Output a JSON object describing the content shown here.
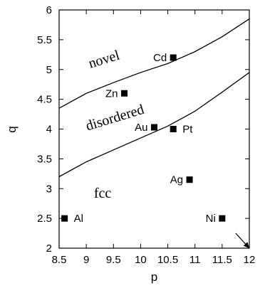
{
  "chart_data": {
    "type": "scatter",
    "title": "",
    "xlabel": "p",
    "ylabel": "q",
    "xlim": [
      8.5,
      12
    ],
    "ylim": [
      2,
      6
    ],
    "grid": false,
    "x_ticks": [
      {
        "value": 8.5,
        "label": "8.5"
      },
      {
        "value": 9,
        "label": "9"
      },
      {
        "value": 9.5,
        "label": "9.5"
      },
      {
        "value": 10,
        "label": "10"
      },
      {
        "value": 10.5,
        "label": "10.5"
      },
      {
        "value": 11,
        "label": "11"
      },
      {
        "value": 11.5,
        "label": "11.5"
      },
      {
        "value": 12,
        "label": "12"
      }
    ],
    "y_ticks": [
      {
        "value": 2,
        "label": "2"
      },
      {
        "value": 2.5,
        "label": "2.5"
      },
      {
        "value": 3,
        "label": "3"
      },
      {
        "value": 3.5,
        "label": "3.5"
      },
      {
        "value": 4,
        "label": "4"
      },
      {
        "value": 4.5,
        "label": "4.5"
      },
      {
        "value": 5,
        "label": "5"
      },
      {
        "value": 5.5,
        "label": "5.5"
      },
      {
        "value": 6,
        "label": "6"
      }
    ],
    "points": [
      {
        "label": "Cd",
        "x": 10.6,
        "y": 5.2,
        "label_side": "left"
      },
      {
        "label": "Zn",
        "x": 9.7,
        "y": 4.6,
        "label_side": "left"
      },
      {
        "label": "Au",
        "x": 10.25,
        "y": 4.03,
        "label_side": "left"
      },
      {
        "label": "Pt",
        "x": 10.6,
        "y": 4.0,
        "label_side": "right"
      },
      {
        "label": "Ag",
        "x": 10.9,
        "y": 3.15,
        "label_side": "left"
      },
      {
        "label": "Al",
        "x": 8.6,
        "y": 2.5,
        "label_side": "right"
      },
      {
        "label": "Ni",
        "x": 11.5,
        "y": 2.5,
        "label_side": "left"
      }
    ],
    "boundaries": [
      {
        "separates": [
          "novel",
          "disordered"
        ],
        "x": [
          8.5,
          9.0,
          9.5,
          10.0,
          10.5,
          11.0,
          11.5,
          12.0
        ],
        "y": [
          4.35,
          4.6,
          4.78,
          4.95,
          5.1,
          5.3,
          5.55,
          5.85
        ]
      },
      {
        "separates": [
          "disordered",
          "fcc"
        ],
        "x": [
          8.5,
          9.0,
          9.5,
          10.0,
          10.5,
          11.0,
          11.5,
          12.0
        ],
        "y": [
          3.2,
          3.45,
          3.65,
          3.85,
          4.05,
          4.3,
          4.62,
          4.95
        ]
      }
    ],
    "regions": [
      {
        "label": "novel",
        "x": 9.35,
        "y": 5.1,
        "rotate": -17
      },
      {
        "label": "disordered",
        "x": 9.55,
        "y": 4.12,
        "rotate": -17
      },
      {
        "label": "fcc",
        "x": 9.3,
        "y": 2.85,
        "rotate": 0
      }
    ],
    "arrow": {
      "from": [
        11.75,
        2.25
      ],
      "to": [
        12.0,
        2.0
      ]
    }
  }
}
